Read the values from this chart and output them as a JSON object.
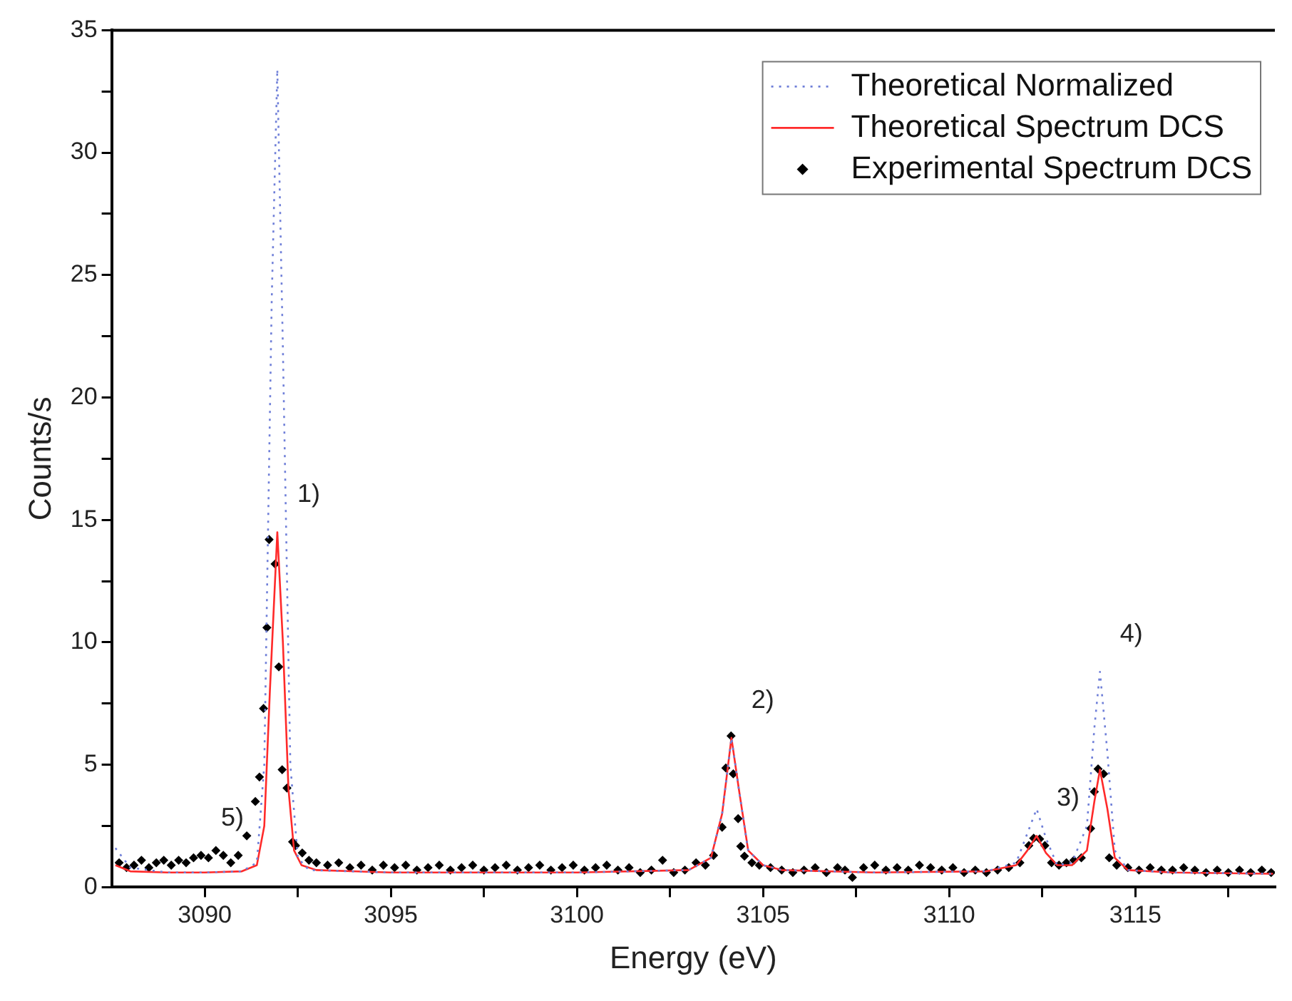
{
  "chart_data": {
    "type": "line",
    "xlabel": "Energy (eV)",
    "ylabel": "Counts/s",
    "xlim": [
      3087.5,
      3118.75
    ],
    "ylim": [
      0,
      35
    ],
    "xticks": [
      3090,
      {
        "value": 3092.5,
        "label": null
      },
      3095,
      {
        "value": 3097.5,
        "label": null
      },
      3100,
      {
        "value": 3102.5,
        "label": null
      },
      3105,
      {
        "value": 3107.5,
        "label": null
      },
      3110,
      {
        "value": 3112.5,
        "label": null
      },
      3115,
      {
        "value": 3117.5,
        "label": null
      }
    ],
    "yticks": [
      0,
      {
        "value": 2.5,
        "label": null
      },
      5,
      {
        "value": 7.5,
        "label": null
      },
      10,
      {
        "value": 12.5,
        "label": null
      },
      15,
      {
        "value": 17.5,
        "label": null
      },
      20,
      {
        "value": 22.5,
        "label": null
      },
      25,
      {
        "value": 27.5,
        "label": null
      },
      30,
      {
        "value": 32.5,
        "label": null
      },
      35
    ],
    "grid": false,
    "legend": "top right",
    "annotations": [
      {
        "text": "1)",
        "x": 3091.95,
        "y": 14.5
      },
      {
        "text": "2)",
        "x": 3104.15,
        "y": 6.1
      },
      {
        "text": "3)",
        "x": 3112.35,
        "y": 2.1
      },
      {
        "text": "4)",
        "x": 3114.05,
        "y": 8.8
      },
      {
        "text": "5)",
        "x": 3089.9,
        "y": 1.3
      }
    ],
    "series": [
      {
        "name": "Theoretical Normalized",
        "color": "#6f7fd8",
        "line_style": "dotted",
        "marker": "none",
        "x": [
          3087.6,
          3088,
          3089,
          3090,
          3091,
          3091.4,
          3091.6,
          3091.8,
          3091.95,
          3092.1,
          3092.3,
          3092.5,
          3092.8,
          3095,
          3100,
          3103,
          3103.6,
          3103.9,
          3104.15,
          3104.35,
          3104.6,
          3105,
          3105.5,
          3108,
          3111,
          3111.8,
          3112.1,
          3112.35,
          3112.6,
          3112.9,
          3113.3,
          3113.7,
          3113.9,
          3114.05,
          3114.25,
          3114.45,
          3114.8,
          3116,
          3118.7
        ],
        "values": [
          1.6,
          0.8,
          0.6,
          0.6,
          0.65,
          1.0,
          5,
          24,
          33.4,
          22,
          5,
          1.2,
          0.7,
          0.6,
          0.6,
          0.7,
          1.2,
          3,
          6.1,
          4,
          1.5,
          0.9,
          0.7,
          0.6,
          0.65,
          1.0,
          2.2,
          3.2,
          2.0,
          0.9,
          1.0,
          2.5,
          6.5,
          8.8,
          5.5,
          1.5,
          0.7,
          0.6,
          0.55
        ]
      },
      {
        "name": "Theoretical Spectrum DCS",
        "color": "#ff2a2a",
        "line_style": "solid",
        "marker": "none",
        "x": [
          3087.6,
          3088,
          3089,
          3090,
          3091,
          3091.4,
          3091.6,
          3091.75,
          3091.95,
          3092.1,
          3092.25,
          3092.4,
          3092.6,
          3093,
          3095,
          3100,
          3103,
          3103.6,
          3103.9,
          3104.15,
          3104.35,
          3104.6,
          3105,
          3105.5,
          3108,
          3111,
          3111.8,
          3112.1,
          3112.35,
          3112.6,
          3112.9,
          3113.3,
          3113.7,
          3113.9,
          3114.05,
          3114.25,
          3114.45,
          3114.8,
          3116,
          3118.7
        ],
        "values": [
          0.9,
          0.65,
          0.6,
          0.6,
          0.65,
          0.9,
          2.5,
          8,
          14.5,
          10,
          4,
          1.5,
          0.9,
          0.7,
          0.6,
          0.6,
          0.7,
          1.2,
          3,
          6.1,
          4,
          1.5,
          0.9,
          0.7,
          0.6,
          0.65,
          0.9,
          1.5,
          2.1,
          1.4,
          0.9,
          0.9,
          1.5,
          3.5,
          4.8,
          3.2,
          1.2,
          0.7,
          0.6,
          0.55
        ]
      },
      {
        "name": "Experimental Spectrum DCS",
        "type": "scatter",
        "color": "#000000",
        "marker": "diamond",
        "x": [
          3087.7,
          3087.9,
          3088.1,
          3088.3,
          3088.5,
          3088.7,
          3088.9,
          3089.1,
          3089.3,
          3089.5,
          3089.7,
          3089.9,
          3090.1,
          3090.3,
          3090.5,
          3090.7,
          3090.9,
          3091.13,
          3091.36,
          3091.47,
          3091.58,
          3091.67,
          3091.73,
          3091.89,
          3091.99,
          3092.08,
          3092.21,
          3092.36,
          3092.44,
          3092.62,
          3092.8,
          3093.0,
          3093.3,
          3093.6,
          3093.9,
          3094.2,
          3094.5,
          3094.8,
          3095.1,
          3095.4,
          3095.7,
          3096.0,
          3096.3,
          3096.6,
          3096.9,
          3097.2,
          3097.5,
          3097.8,
          3098.1,
          3098.4,
          3098.7,
          3099.0,
          3099.3,
          3099.6,
          3099.9,
          3100.2,
          3100.5,
          3100.8,
          3101.1,
          3101.4,
          3101.7,
          3102.0,
          3102.3,
          3102.6,
          3102.9,
          3103.2,
          3103.45,
          3103.67,
          3103.9,
          3104.0,
          3104.14,
          3104.2,
          3104.33,
          3104.4,
          3104.5,
          3104.7,
          3104.9,
          3105.2,
          3105.5,
          3105.8,
          3106.1,
          3106.4,
          3106.7,
          3107.0,
          3107.2,
          3107.4,
          3107.7,
          3108.0,
          3108.3,
          3108.6,
          3108.9,
          3109.2,
          3109.5,
          3109.8,
          3110.1,
          3110.4,
          3110.7,
          3111.0,
          3111.3,
          3111.6,
          3111.9,
          3112.14,
          3112.27,
          3112.43,
          3112.57,
          3112.75,
          3112.95,
          3113.15,
          3113.35,
          3113.55,
          3113.8,
          3113.9,
          3114.0,
          3114.15,
          3114.3,
          3114.5,
          3114.8,
          3115.1,
          3115.4,
          3115.7,
          3116.0,
          3116.3,
          3116.6,
          3116.9,
          3117.2,
          3117.5,
          3117.8,
          3118.1,
          3118.4,
          3118.65
        ],
        "values": [
          1.0,
          0.8,
          0.9,
          1.1,
          0.8,
          1.0,
          1.1,
          0.9,
          1.1,
          1.0,
          1.2,
          1.3,
          1.2,
          1.5,
          1.3,
          1.0,
          1.3,
          2.1,
          3.5,
          4.5,
          7.3,
          10.6,
          14.2,
          13.2,
          9.0,
          4.8,
          4.05,
          1.85,
          1.7,
          1.4,
          1.1,
          1.0,
          0.9,
          1.0,
          0.8,
          0.9,
          0.7,
          0.9,
          0.8,
          0.9,
          0.7,
          0.8,
          0.9,
          0.7,
          0.8,
          0.9,
          0.7,
          0.8,
          0.9,
          0.7,
          0.8,
          0.9,
          0.7,
          0.8,
          0.9,
          0.7,
          0.8,
          0.9,
          0.7,
          0.8,
          0.6,
          0.7,
          1.1,
          0.6,
          0.7,
          1.0,
          0.9,
          1.3,
          2.45,
          4.87,
          6.18,
          4.63,
          2.8,
          1.67,
          1.27,
          1.0,
          0.9,
          0.8,
          0.7,
          0.6,
          0.7,
          0.8,
          0.6,
          0.8,
          0.7,
          0.4,
          0.8,
          0.9,
          0.7,
          0.8,
          0.7,
          0.9,
          0.8,
          0.7,
          0.8,
          0.6,
          0.7,
          0.6,
          0.7,
          0.8,
          1.0,
          1.7,
          2.0,
          1.97,
          1.7,
          1.0,
          0.9,
          1.0,
          1.1,
          1.2,
          2.4,
          3.9,
          4.83,
          4.63,
          1.2,
          0.9,
          0.8,
          0.7,
          0.8,
          0.7,
          0.7,
          0.8,
          0.7,
          0.6,
          0.7,
          0.6,
          0.7,
          0.6,
          0.7,
          0.6
        ]
      }
    ]
  }
}
